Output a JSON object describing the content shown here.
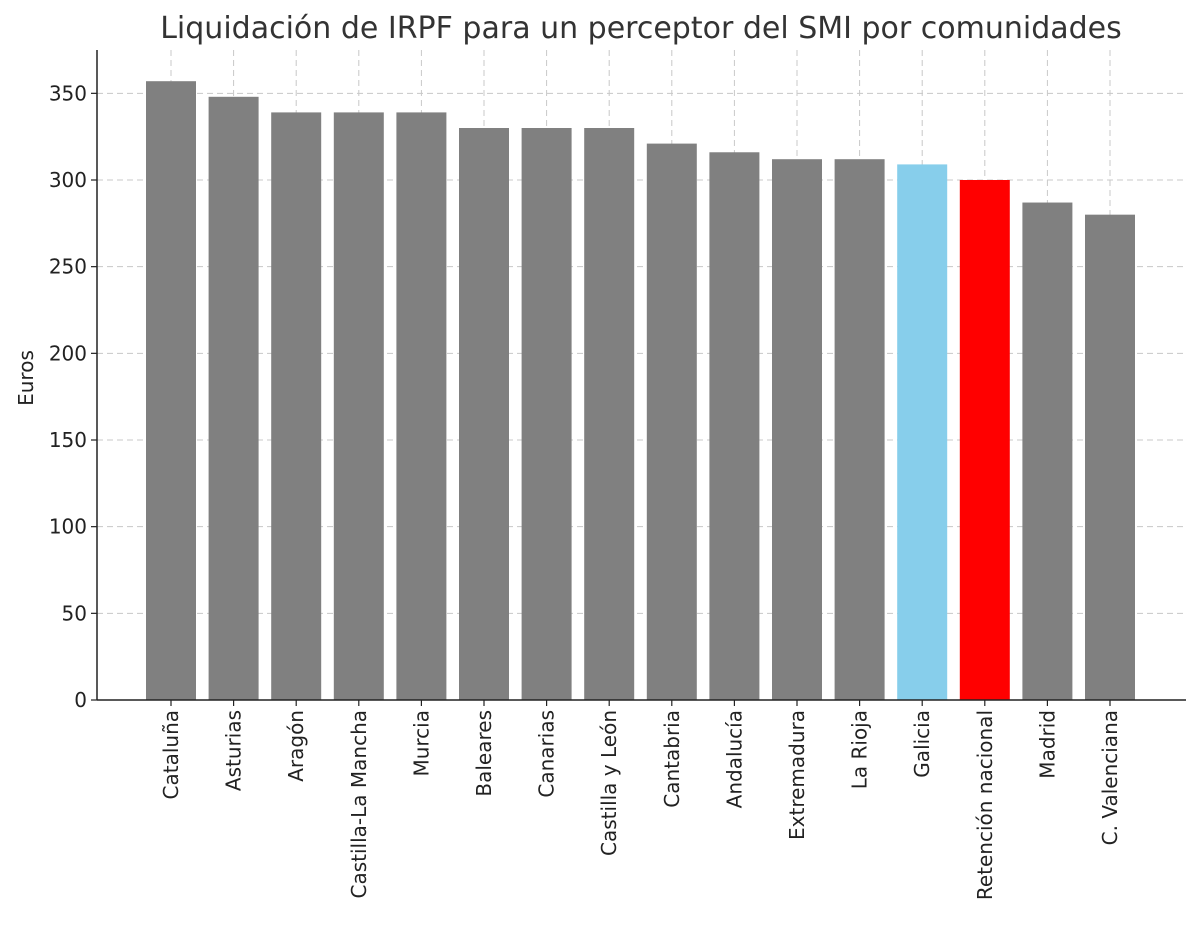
{
  "chart_data": {
    "type": "bar",
    "title": "Liquidación de IRPF para un perceptor del SMI por comunidades",
    "xlabel": "",
    "ylabel": "Euros",
    "ylim": [
      0,
      375
    ],
    "yticks": [
      0,
      50,
      100,
      150,
      200,
      250,
      300,
      350
    ],
    "grid": true,
    "categories": [
      "Cataluña",
      "Asturias",
      "Aragón",
      "Castilla-La Mancha",
      "Murcia",
      "Baleares",
      "Canarias",
      "Castilla y León",
      "Cantabria",
      "Andalucía",
      "Extremadura",
      "La Rioja",
      "Galicia",
      "Retención nacional",
      "Madrid",
      "C. Valenciana"
    ],
    "values": [
      357,
      348,
      339,
      339,
      339,
      330,
      330,
      330,
      321,
      316,
      312,
      312,
      309,
      300,
      287,
      280
    ],
    "colors": [
      "#808080",
      "#808080",
      "#808080",
      "#808080",
      "#808080",
      "#808080",
      "#808080",
      "#808080",
      "#808080",
      "#808080",
      "#808080",
      "#808080",
      "#87CEEB",
      "#FF0000",
      "#808080",
      "#808080"
    ]
  }
}
